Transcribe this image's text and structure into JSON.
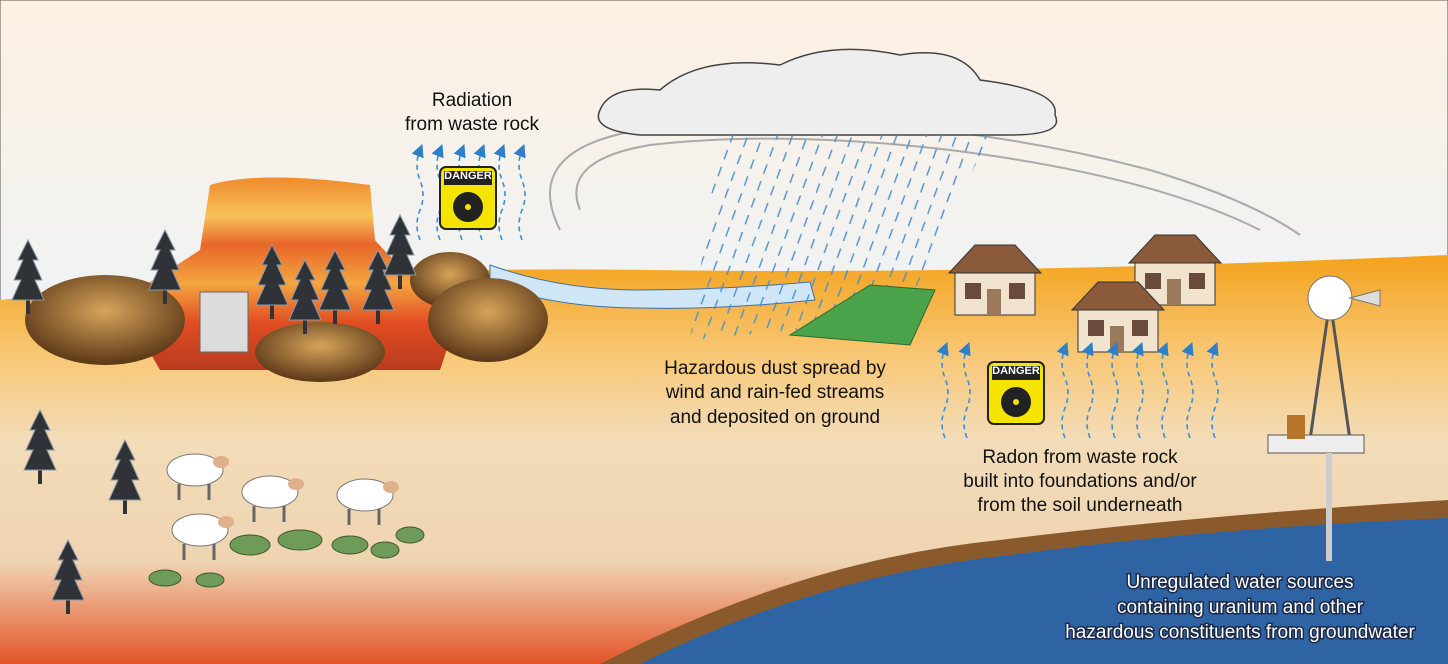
{
  "labels": [
    {
      "lines": [
        "Radiation",
        "from waste rock"
      ]
    },
    {
      "lines": [
        "Hazardous dust spread by",
        "wind and rain-fed streams",
        "and deposited on ground"
      ]
    },
    {
      "lines": [
        "Radon from waste rock",
        "built into foundations and/or",
        "from the soil underneath"
      ]
    },
    {
      "lines": [
        "Unregulated water sources",
        "containing uranium and other",
        "hazardous constituents from groundwater"
      ]
    }
  ],
  "signs": [
    "DANGER",
    "DANGER"
  ]
}
